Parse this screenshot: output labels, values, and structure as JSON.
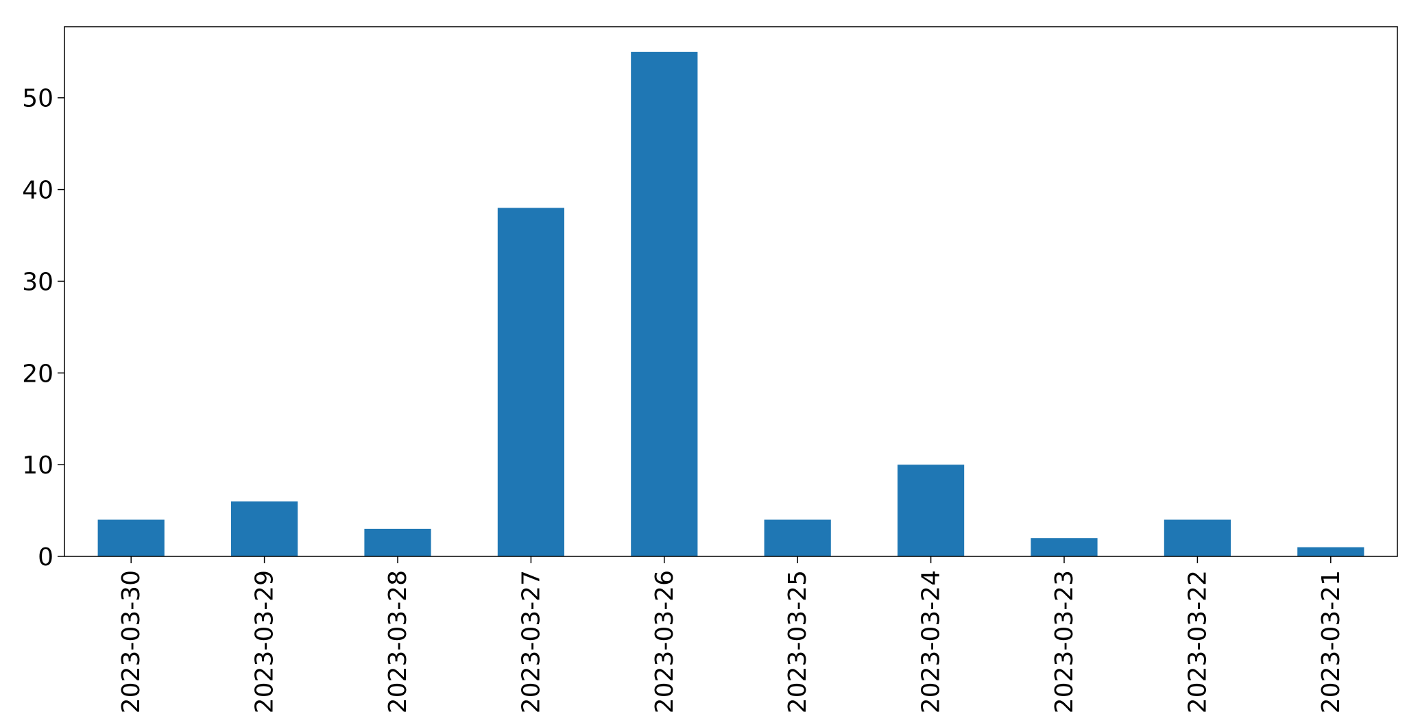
{
  "chart_data": {
    "type": "bar",
    "title": "",
    "xlabel": "",
    "ylabel": "",
    "categories": [
      "2023-03-30",
      "2023-03-29",
      "2023-03-28",
      "2023-03-27",
      "2023-03-26",
      "2023-03-25",
      "2023-03-24",
      "2023-03-23",
      "2023-03-22",
      "2023-03-21"
    ],
    "values": [
      4,
      6,
      3,
      38,
      55,
      4,
      10,
      2,
      4,
      1
    ],
    "ylim": [
      0,
      57.75
    ],
    "yticks": [
      0,
      10,
      20,
      30,
      40,
      50
    ],
    "bar_color": "#1f77b4",
    "grid": false,
    "legend": "none",
    "xtick_rotation": "vertical"
  }
}
